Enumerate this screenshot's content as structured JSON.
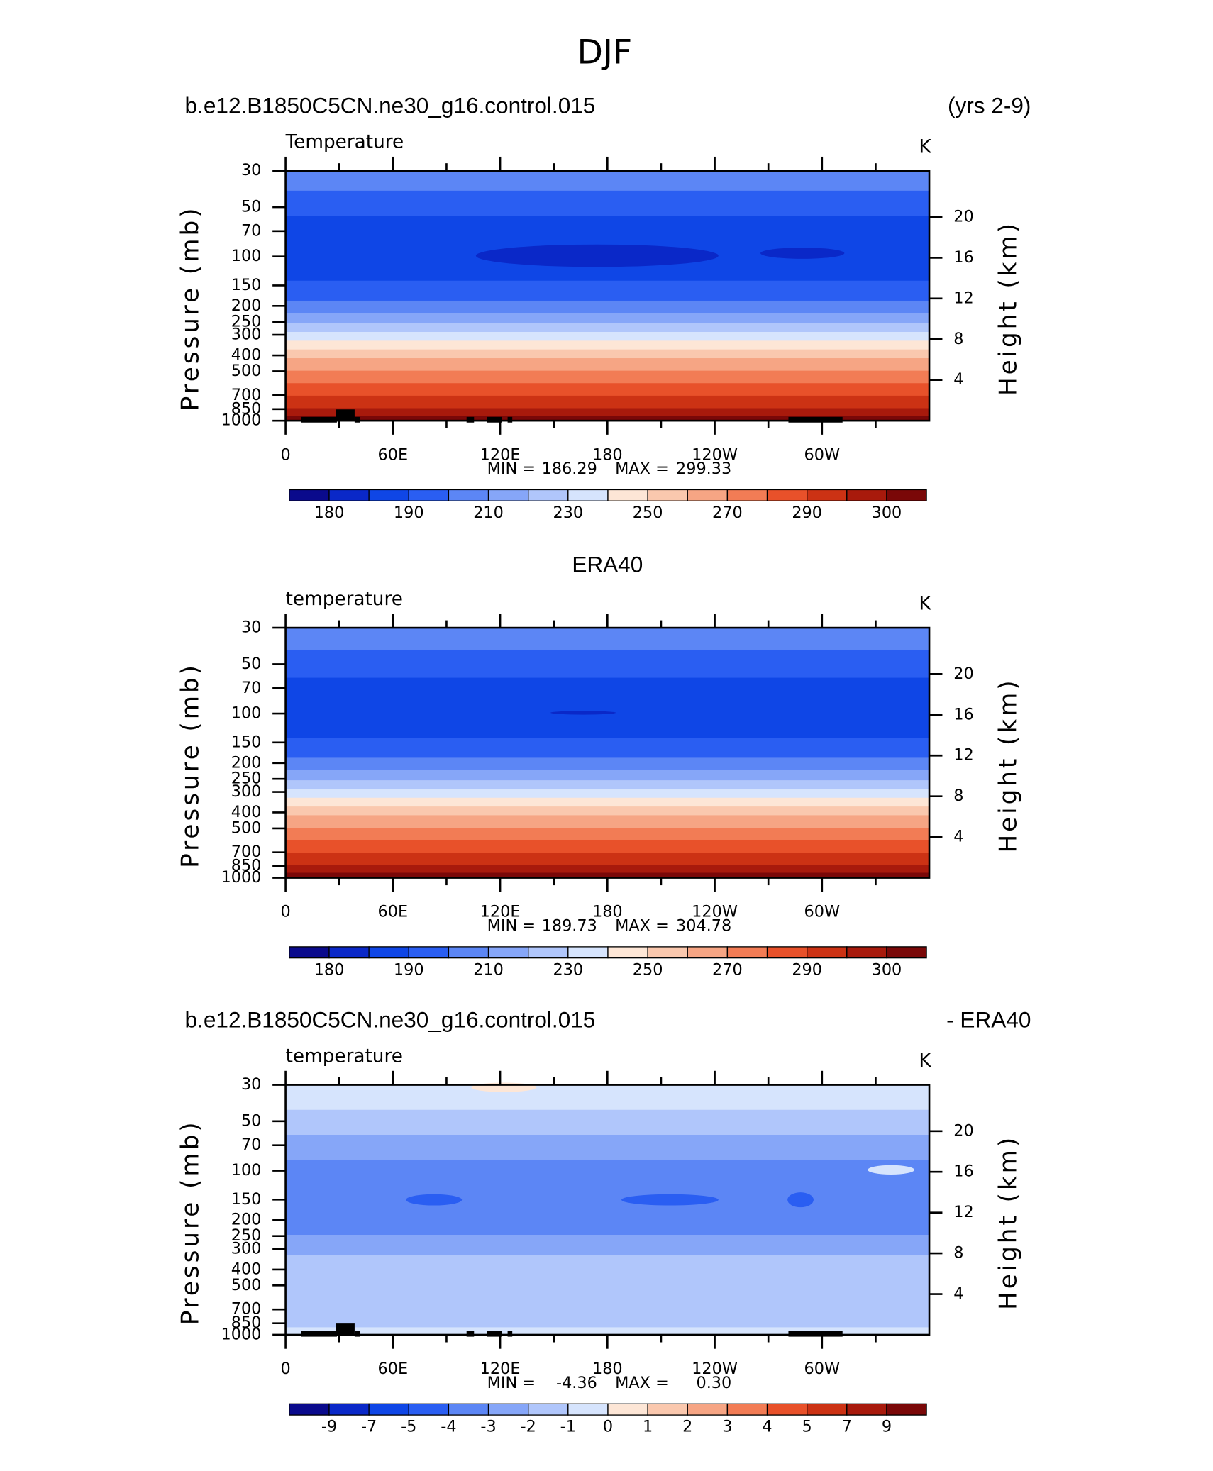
{
  "title": "DJF",
  "panels": [
    {
      "left_title": "b.e12.B1850C5CN.ne30_g16.control.015",
      "right_title": "(yrs 2-9)",
      "variable": "Temperature",
      "units": "K",
      "ylabel": "Pressure (mb)",
      "y2label": "Height (km)",
      "ylim": [
        30,
        1000
      ],
      "yticks": [
        30,
        50,
        70,
        100,
        150,
        200,
        250,
        300,
        400,
        500,
        700,
        850,
        1000
      ],
      "y2ticks": [
        4,
        8,
        12,
        16,
        20
      ],
      "xlim": [
        0,
        360
      ],
      "xticks": [
        0,
        {
          "value": 60,
          "label": "60E"
        },
        {
          "value": 120,
          "label": "120E"
        },
        180,
        {
          "value": 240,
          "label": "120W"
        },
        {
          "value": 300,
          "label": "60W"
        }
      ],
      "min_label": "MIN =",
      "min": 186.29,
      "max_label": "MAX =",
      "max": 299.33,
      "colorbar": {
        "colors": [
          "#0a0a8c",
          "#0a28c8",
          "#0f46e6",
          "#2a5ef2",
          "#5c86f5",
          "#86a6f8",
          "#b0c6fb",
          "#d6e4fd",
          "#fde6d6",
          "#fac8ae",
          "#f6a584",
          "#f27c55",
          "#e8512a",
          "#cc3214",
          "#a81a0c",
          "#7a0808"
        ],
        "labels": [
          180,
          190,
          210,
          230,
          250,
          270,
          290,
          300
        ]
      }
    },
    {
      "center_title": "ERA40",
      "variable": "temperature",
      "units": "K",
      "ylabel": "Pressure (mb)",
      "y2label": "Height (km)",
      "ylim": [
        30,
        1000
      ],
      "yticks": [
        30,
        50,
        70,
        100,
        150,
        200,
        250,
        300,
        400,
        500,
        700,
        850,
        1000
      ],
      "y2ticks": [
        4,
        8,
        12,
        16,
        20
      ],
      "xlim": [
        0,
        360
      ],
      "xticks": [
        0,
        {
          "value": 60,
          "label": "60E"
        },
        {
          "value": 120,
          "label": "120E"
        },
        180,
        {
          "value": 240,
          "label": "120W"
        },
        {
          "value": 300,
          "label": "60W"
        }
      ],
      "min_label": "MIN =",
      "min": 189.73,
      "max_label": "MAX =",
      "max": 304.78,
      "colorbar": {
        "colors": [
          "#0a0a8c",
          "#0a28c8",
          "#0f46e6",
          "#2a5ef2",
          "#5c86f5",
          "#86a6f8",
          "#b0c6fb",
          "#d6e4fd",
          "#fde6d6",
          "#fac8ae",
          "#f6a584",
          "#f27c55",
          "#e8512a",
          "#cc3214",
          "#a81a0c",
          "#7a0808"
        ],
        "labels": [
          180,
          190,
          210,
          230,
          250,
          270,
          290,
          300
        ]
      }
    },
    {
      "left_title": "b.e12.B1850C5CN.ne30_g16.control.015",
      "right_title": "- ERA40",
      "variable": "temperature",
      "units": "K",
      "ylabel": "Pressure (mb)",
      "y2label": "Height (km)",
      "ylim": [
        30,
        1000
      ],
      "yticks": [
        30,
        50,
        70,
        100,
        150,
        200,
        250,
        300,
        400,
        500,
        700,
        850,
        1000
      ],
      "y2ticks": [
        4,
        8,
        12,
        16,
        20
      ],
      "xlim": [
        0,
        360
      ],
      "xticks": [
        0,
        {
          "value": 60,
          "label": "60E"
        },
        {
          "value": 120,
          "label": "120E"
        },
        180,
        {
          "value": 240,
          "label": "120W"
        },
        {
          "value": 300,
          "label": "60W"
        }
      ],
      "min_label": "MIN =",
      "min": -4.36,
      "max_label": "MAX =",
      "max": {
        "value": 0.3,
        "label": "0.30"
      },
      "colorbar": {
        "colors": [
          "#0a0a8c",
          "#0a28c8",
          "#0f46e6",
          "#2a5ef2",
          "#5c86f5",
          "#86a6f8",
          "#b0c6fb",
          "#d6e4fd",
          "#fde6d6",
          "#fac8ae",
          "#f6a584",
          "#f27c55",
          "#e8512a",
          "#cc3214",
          "#a81a0c",
          "#7a0808"
        ],
        "labels": [
          -9,
          -7,
          -5,
          -4,
          -3,
          -2,
          -1,
          0,
          1,
          2,
          3,
          4,
          5,
          7,
          9
        ]
      }
    }
  ]
}
